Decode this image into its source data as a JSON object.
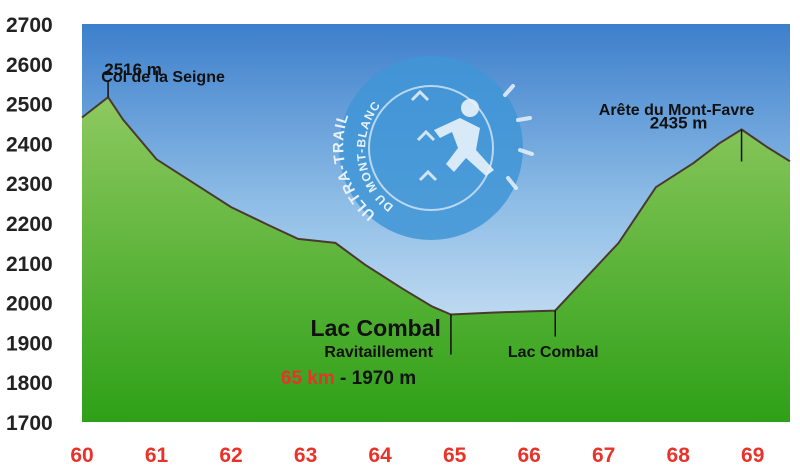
{
  "chart_data": {
    "type": "area",
    "title": "",
    "xlabel": "",
    "ylabel": "",
    "xlim": [
      60,
      69.5
    ],
    "ylim": [
      1700,
      2700
    ],
    "y_ticks": [
      1700,
      1800,
      1900,
      2000,
      2100,
      2200,
      2300,
      2400,
      2500,
      2600,
      2700
    ],
    "x_ticks": [
      60,
      61,
      62,
      63,
      64,
      65,
      66,
      67,
      68,
      69
    ],
    "grid": false,
    "legend": "none",
    "series": [
      {
        "x": [
          60,
          60.35,
          60.55,
          61.0,
          61.5,
          62.0,
          62.5,
          62.9,
          63.4,
          63.8,
          64.3,
          64.7,
          64.95,
          65.5,
          66.0,
          66.35,
          66.7,
          67.2,
          67.7,
          68.2,
          68.55,
          68.85,
          69.2,
          69.5
        ],
        "y": [
          2465,
          2516,
          2460,
          2360,
          2300,
          2240,
          2195,
          2160,
          2150,
          2095,
          2035,
          1990,
          1970,
          1975,
          1978,
          1980,
          2050,
          2150,
          2290,
          2350,
          2400,
          2435,
          2390,
          2355
        ]
      }
    ],
    "markers": [
      {
        "x": 60.35,
        "label": "Col de la Seigne",
        "value_label": "2516 m"
      },
      {
        "x": 68.85,
        "label": "Arête du Mont-Favre",
        "value_label": "2435 m"
      },
      {
        "x": 64.95,
        "label": "Lac Combal",
        "sublabel": "Ravitaillement",
        "km_label": "65 km",
        "separator": " - ",
        "value_label": "1970 m"
      },
      {
        "x": 66.35,
        "label": "Lac Combal"
      }
    ],
    "colors": {
      "sky_top": "#3d7fcc",
      "sky_mid": "#8ebde6",
      "sky_low": "#eaf4fb",
      "ground_top": "#8ec960",
      "ground_bottom": "#2ea017",
      "ridge_line": "#4a3a2e",
      "x_tick_label": "#e8332a",
      "km_label": "#e8332a",
      "logo_circle": "#3f95d6"
    }
  },
  "logo": {
    "text_outer": "ULTRA-TRAIL",
    "text_inner": "DU MONT-BLANC"
  }
}
